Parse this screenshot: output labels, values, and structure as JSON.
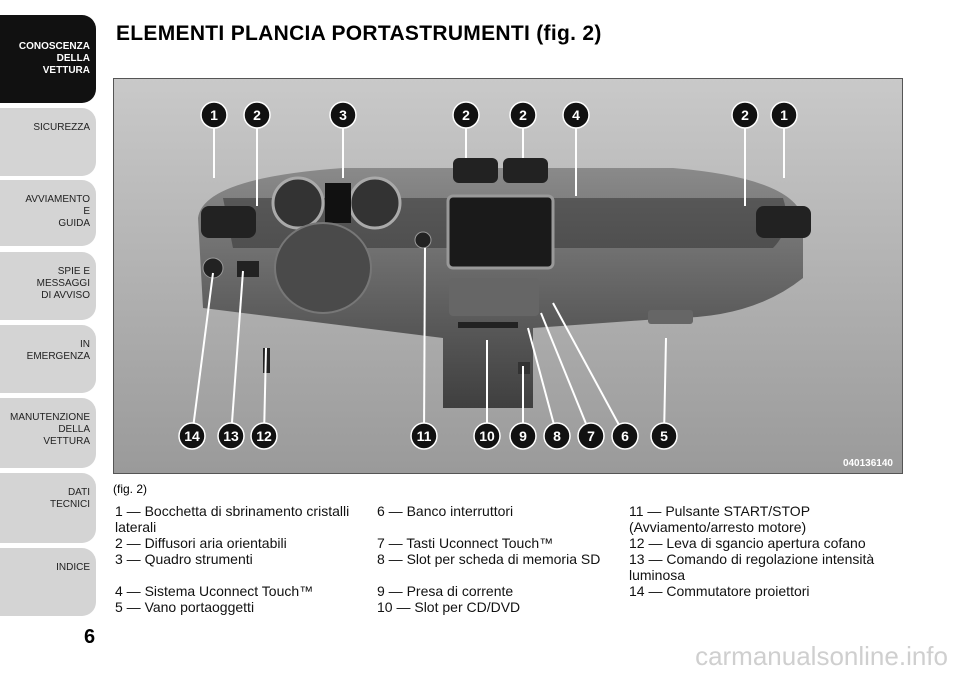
{
  "sidebar": {
    "tabs": [
      [
        "CONOSCENZA",
        "DELLA",
        "VETTURA"
      ],
      [
        "SICUREZZA"
      ],
      [
        "AVVIAMENTO",
        "E",
        "GUIDA"
      ],
      [
        "SPIE E",
        "MESSAGGI",
        "DI AVVISO"
      ],
      [
        "IN",
        "EMERGENZA"
      ],
      [
        "MANUTENZIONE",
        "DELLA",
        "VETTURA"
      ],
      [
        "DATI",
        "TECNICI"
      ],
      [
        "INDICE"
      ]
    ],
    "page_number": "6"
  },
  "title": "ELEMENTI PLANCIA PORTASTRUMENTI (fig. 2)",
  "figure": {
    "callouts_top": [
      "1",
      "2",
      "3",
      "2",
      "2",
      "4",
      "2",
      "1"
    ],
    "callouts_bottom": [
      "14",
      "13",
      "12",
      "11",
      "10",
      "9",
      "8",
      "7",
      "6",
      "5"
    ],
    "code": "040136140",
    "caption": "(fig. 2)"
  },
  "legend": [
    [
      "1 — Bocchetta di sbrinamento cristalli laterali",
      "6 — Banco interruttori",
      "11 — Pulsante START/STOP (Avviamento/arresto motore)"
    ],
    [
      "2 — Diffusori aria orientabili",
      "7 — Tasti Uconnect Touch™",
      "12 — Leva di sgancio apertura cofano"
    ],
    [
      "3 — Quadro strumenti",
      "8 — Slot per scheda di memoria SD",
      "13 — Comando di regolazione intensità luminosa"
    ],
    [
      "4 — Sistema Uconnect Touch™",
      "9 — Presa di corrente",
      "14 — Commutatore proiettori"
    ],
    [
      "5 — Vano portaoggetti",
      "10 — Slot per CD/DVD"
    ]
  ],
  "watermark": "carmanualsonline.info"
}
